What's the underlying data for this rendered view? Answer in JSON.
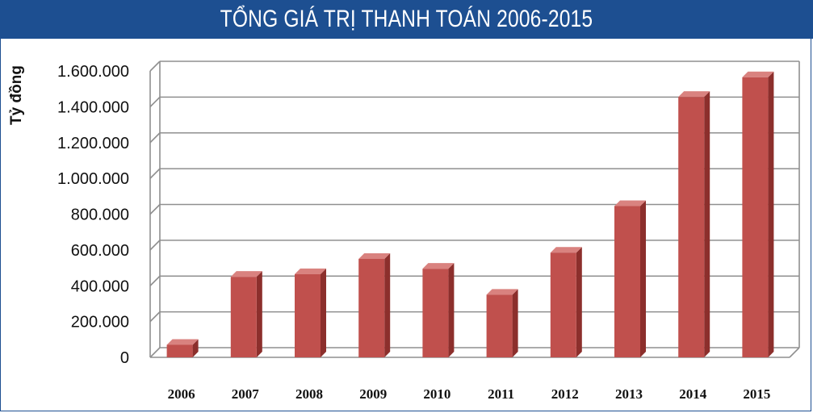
{
  "chart_data": {
    "type": "bar",
    "title": "TỔNG GIÁ TRỊ THANH TOÁN 2006-2015",
    "ylabel": "Tỷ đồng",
    "xlabel": "",
    "categories": [
      "2006",
      "2007",
      "2008",
      "2009",
      "2010",
      "2011",
      "2012",
      "2013",
      "2014",
      "2015"
    ],
    "values": [
      70000,
      450000,
      465000,
      550000,
      495000,
      350000,
      585000,
      845000,
      1455000,
      1565000
    ],
    "ylim": [
      0,
      1600000
    ],
    "yticks": [
      "0",
      "200.000",
      "400.000",
      "600.000",
      "800.000",
      "1.000.000",
      "1.200.000",
      "1.400.000",
      "1.600.000"
    ],
    "grid": true,
    "colors": {
      "bar_front": "#c0504d",
      "bar_side": "#8c2f2c",
      "bar_top": "#d9827f",
      "title_bg": "#1d4f91"
    }
  }
}
